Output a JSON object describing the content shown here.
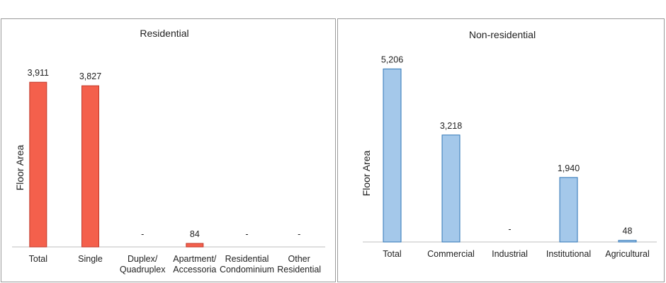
{
  "chart_data": [
    {
      "type": "bar",
      "title": "Residential",
      "ylabel": "Floor Area",
      "xlabel": "",
      "categories": [
        [
          "Total"
        ],
        [
          "Single"
        ],
        [
          "Duplex/",
          "Quadruplex"
        ],
        [
          "Apartment/",
          "Accessoria"
        ],
        [
          "Residential",
          "Condominium"
        ],
        [
          "Other",
          "Residential"
        ]
      ],
      "values": [
        3911,
        3827,
        0,
        84,
        0,
        0
      ],
      "value_labels": [
        "3,911",
        "3,827",
        "-",
        "84",
        "-",
        "-"
      ],
      "ylim": [
        0,
        4200
      ],
      "grid": false,
      "colors": {
        "fill": "#f4604c",
        "stroke": "#c0392b"
      }
    },
    {
      "type": "bar",
      "title": "Non-residential",
      "ylabel": "Floor Area",
      "xlabel": "",
      "categories": [
        [
          "Total"
        ],
        [
          "Commercial"
        ],
        [
          "Industrial"
        ],
        [
          "Institutional"
        ],
        [
          "Agricultural"
        ]
      ],
      "values": [
        5206,
        3218,
        0,
        1940,
        48
      ],
      "value_labels": [
        "5,206",
        "3,218",
        "-",
        "1,940",
        "48"
      ],
      "ylim": [
        0,
        5300
      ],
      "grid": false,
      "colors": {
        "fill": "#a4c8ea",
        "stroke": "#2e75b6"
      }
    }
  ]
}
